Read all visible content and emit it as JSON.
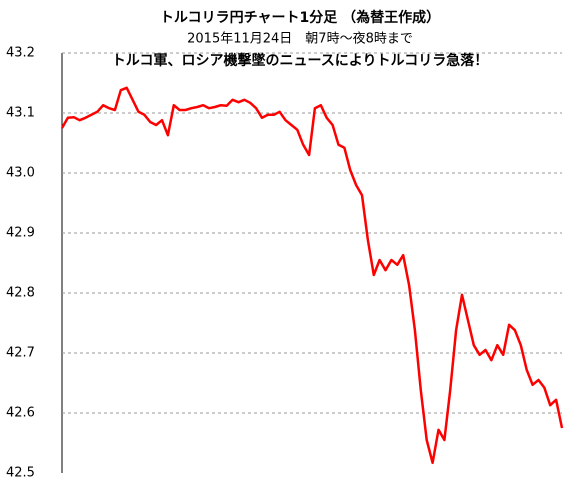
{
  "chart_data": {
    "type": "line",
    "title": "トルコリラ円チャート1分足 （為替王作成）",
    "subtitle": "2015年11月24日　朝7時～夜8時まで",
    "annotation": "トルコ軍、ロシア機撃墜のニュースによりトルコリラ急落！",
    "series": [
      {
        "name": null,
        "color": "#ff0000",
        "values": [
          43.075,
          43.092,
          43.093,
          43.088,
          43.092,
          43.097,
          43.102,
          43.113,
          43.108,
          43.105,
          43.138,
          43.142,
          43.122,
          43.102,
          43.097,
          43.085,
          43.08,
          43.088,
          43.063,
          43.113,
          43.105,
          43.105,
          43.108,
          43.11,
          43.113,
          43.108,
          43.11,
          43.113,
          43.112,
          43.122,
          43.118,
          43.122,
          43.117,
          43.108,
          43.092,
          43.097,
          43.097,
          43.102,
          43.088,
          43.08,
          43.072,
          43.047,
          43.03,
          43.108,
          43.113,
          43.092,
          43.08,
          43.047,
          43.042,
          43.005,
          42.98,
          42.963,
          42.888,
          42.83,
          42.855,
          42.838,
          42.855,
          42.847,
          42.863,
          42.813,
          42.738,
          42.638,
          42.555,
          42.517,
          42.572,
          42.555,
          42.638,
          42.738,
          42.797,
          42.755,
          42.713,
          42.697,
          42.705,
          42.688,
          42.713,
          42.697,
          42.747,
          42.738,
          42.713,
          42.672,
          42.647,
          42.655,
          42.642,
          42.613,
          42.622,
          42.575
        ]
      }
    ],
    "ylim": [
      42.5,
      43.2
    ],
    "yticks": [
      42.5,
      42.6,
      42.7,
      42.8,
      42.9,
      {
        "value": 43,
        "label": "43.0"
      },
      43.1,
      43.2
    ],
    "grid": true
  }
}
